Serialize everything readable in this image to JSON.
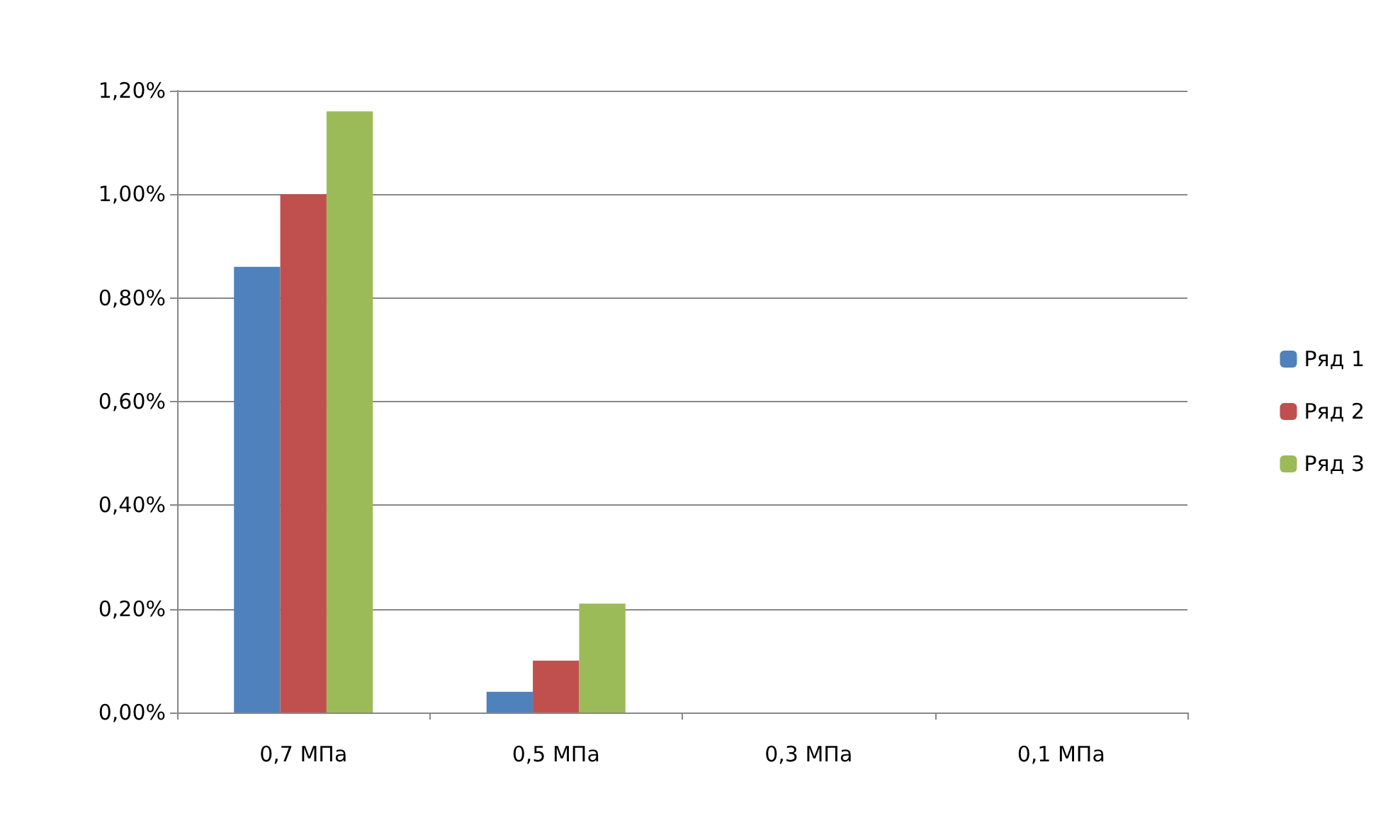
{
  "chart_data": {
    "type": "bar",
    "categories": [
      "0,7 МПа",
      "0,5 МПа",
      "0,3 МПа",
      "0,1 МПа"
    ],
    "series": [
      {
        "name": "Ряд 1",
        "color": "#4f81bd",
        "values": [
          0.86,
          0.04,
          0,
          0
        ]
      },
      {
        "name": "Ряд 2",
        "color": "#c0504d",
        "values": [
          1.0,
          0.1,
          0,
          0
        ]
      },
      {
        "name": "Ряд 3",
        "color": "#9bbb59",
        "values": [
          1.16,
          0.21,
          0,
          0
        ]
      }
    ],
    "ylim": [
      0,
      1.2
    ],
    "yticks": [
      {
        "value": 0,
        "label": "0,00%"
      },
      {
        "value": 0.2,
        "label": "0,20%"
      },
      {
        "value": 0.4,
        "label": "0,40%"
      },
      {
        "value": 0.6,
        "label": "0,60%"
      },
      {
        "value": 0.8,
        "label": "0,80%"
      },
      {
        "value": 1.0,
        "label": "1,00%"
      },
      {
        "value": 1.2,
        "label": "1,20%"
      }
    ],
    "grid": "y",
    "legend": "right"
  }
}
